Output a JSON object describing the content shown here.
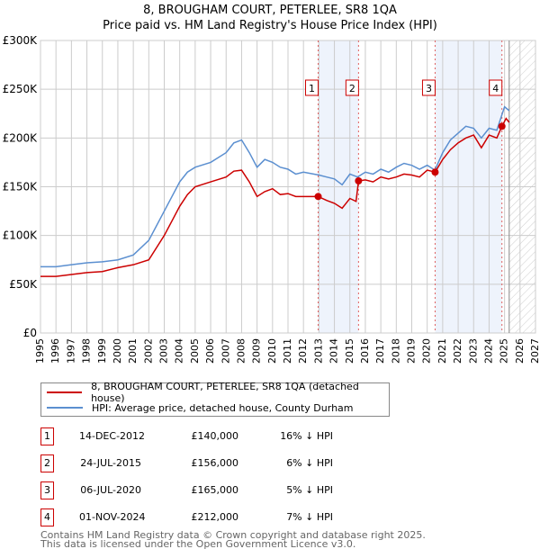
{
  "chart_data": {
    "type": "line",
    "title": "8, BROUGHAM COURT, PETERLEE, SR8 1QA",
    "subtitle": "Price paid vs. HM Land Registry's House Price Index (HPI)",
    "xlim": [
      1995,
      2027
    ],
    "ylim": [
      0,
      300000
    ],
    "grid": true,
    "x_ticks": [
      "1995",
      "1996",
      "1997",
      "1998",
      "1999",
      "2000",
      "2001",
      "2002",
      "2003",
      "2004",
      "2005",
      "2006",
      "2007",
      "2008",
      "2009",
      "2010",
      "2011",
      "2012",
      "2013",
      "2014",
      "2015",
      "2016",
      "2017",
      "2018",
      "2019",
      "2020",
      "2021",
      "2022",
      "2023",
      "2024",
      "2025",
      "2026",
      "2027"
    ],
    "y_ticks": [
      {
        "v": 0,
        "label": "£0"
      },
      {
        "v": 50000,
        "label": "£50K"
      },
      {
        "v": 100000,
        "label": "£100K"
      },
      {
        "v": 150000,
        "label": "£150K"
      },
      {
        "v": 200000,
        "label": "£200K"
      },
      {
        "v": 250000,
        "label": "£250K"
      },
      {
        "v": 300000,
        "label": "£300K"
      }
    ],
    "forecast_start": 2025.3,
    "series": [
      {
        "name": "8, BROUGHAM COURT, PETERLEE, SR8 1QA (detached house)",
        "color": "#cc0000",
        "points": [
          [
            1995,
            58000
          ],
          [
            1996,
            58000
          ],
          [
            1997,
            60000
          ],
          [
            1998,
            62000
          ],
          [
            1999,
            63000
          ],
          [
            2000,
            67000
          ],
          [
            2001,
            70000
          ],
          [
            2002,
            75000
          ],
          [
            2003,
            100000
          ],
          [
            2003.5,
            115000
          ],
          [
            2004,
            130000
          ],
          [
            2004.5,
            142000
          ],
          [
            2005,
            150000
          ],
          [
            2006,
            155000
          ],
          [
            2007,
            160000
          ],
          [
            2007.5,
            166000
          ],
          [
            2008,
            167000
          ],
          [
            2008.5,
            155000
          ],
          [
            2009,
            140000
          ],
          [
            2009.5,
            145000
          ],
          [
            2010,
            148000
          ],
          [
            2010.5,
            142000
          ],
          [
            2011,
            143000
          ],
          [
            2011.5,
            140000
          ],
          [
            2012,
            140000
          ],
          [
            2012.95,
            140000
          ],
          [
            2013.5,
            136000
          ],
          [
            2014,
            133000
          ],
          [
            2014.5,
            128000
          ],
          [
            2015,
            138000
          ],
          [
            2015.4,
            135000
          ],
          [
            2015.56,
            156000
          ],
          [
            2016,
            157000
          ],
          [
            2016.5,
            155000
          ],
          [
            2017,
            160000
          ],
          [
            2017.5,
            158000
          ],
          [
            2018,
            160000
          ],
          [
            2018.5,
            163000
          ],
          [
            2019,
            162000
          ],
          [
            2019.5,
            160000
          ],
          [
            2020,
            167000
          ],
          [
            2020.51,
            165000
          ],
          [
            2021,
            178000
          ],
          [
            2021.5,
            188000
          ],
          [
            2022,
            195000
          ],
          [
            2022.5,
            200000
          ],
          [
            2023,
            203000
          ],
          [
            2023.5,
            190000
          ],
          [
            2024,
            203000
          ],
          [
            2024.5,
            200000
          ],
          [
            2024.83,
            212000
          ],
          [
            2025.1,
            220000
          ],
          [
            2025.3,
            216000
          ]
        ]
      },
      {
        "name": "HPI: Average price, detached house, County Durham",
        "color": "#5b8fd0",
        "points": [
          [
            1995,
            68000
          ],
          [
            1996,
            68000
          ],
          [
            1997,
            70000
          ],
          [
            1998,
            72000
          ],
          [
            1999,
            73000
          ],
          [
            2000,
            75000
          ],
          [
            2001,
            80000
          ],
          [
            2002,
            95000
          ],
          [
            2003,
            125000
          ],
          [
            2003.5,
            140000
          ],
          [
            2004,
            155000
          ],
          [
            2004.5,
            165000
          ],
          [
            2005,
            170000
          ],
          [
            2006,
            175000
          ],
          [
            2007,
            185000
          ],
          [
            2007.5,
            195000
          ],
          [
            2008,
            198000
          ],
          [
            2008.5,
            185000
          ],
          [
            2009,
            170000
          ],
          [
            2009.5,
            178000
          ],
          [
            2010,
            175000
          ],
          [
            2010.5,
            170000
          ],
          [
            2011,
            168000
          ],
          [
            2011.5,
            163000
          ],
          [
            2012,
            165000
          ],
          [
            2013,
            162000
          ],
          [
            2013.5,
            160000
          ],
          [
            2014,
            158000
          ],
          [
            2014.5,
            152000
          ],
          [
            2015,
            163000
          ],
          [
            2015.5,
            160000
          ],
          [
            2016,
            165000
          ],
          [
            2016.5,
            163000
          ],
          [
            2017,
            168000
          ],
          [
            2017.5,
            165000
          ],
          [
            2018,
            170000
          ],
          [
            2018.5,
            174000
          ],
          [
            2019,
            172000
          ],
          [
            2019.5,
            168000
          ],
          [
            2020,
            172000
          ],
          [
            2020.5,
            167000
          ],
          [
            2021,
            185000
          ],
          [
            2021.5,
            198000
          ],
          [
            2022,
            205000
          ],
          [
            2022.5,
            212000
          ],
          [
            2023,
            210000
          ],
          [
            2023.5,
            200000
          ],
          [
            2024,
            210000
          ],
          [
            2024.5,
            208000
          ],
          [
            2025,
            232000
          ],
          [
            2025.3,
            228000
          ]
        ]
      }
    ],
    "sales": [
      {
        "id": "1",
        "x": 2012.95,
        "price": 140000,
        "date": "14-DEC-2012",
        "price_label": "£140,000",
        "delta": "16% ↓ HPI"
      },
      {
        "id": "2",
        "x": 2015.56,
        "price": 156000,
        "date": "24-JUL-2015",
        "price_label": "£156,000",
        "delta": "6% ↓ HPI"
      },
      {
        "id": "3",
        "x": 2020.51,
        "price": 165000,
        "date": "06-JUL-2020",
        "price_label": "£165,000",
        "delta": "5% ↓ HPI"
      },
      {
        "id": "4",
        "x": 2024.83,
        "price": 212000,
        "date": "01-NOV-2024",
        "price_label": "£212,000",
        "delta": "7% ↓ HPI"
      }
    ]
  },
  "footer": {
    "line1": "Contains HM Land Registry data © Crown copyright and database right 2025.",
    "line2": "This data is licensed under the Open Government Licence v3.0."
  }
}
